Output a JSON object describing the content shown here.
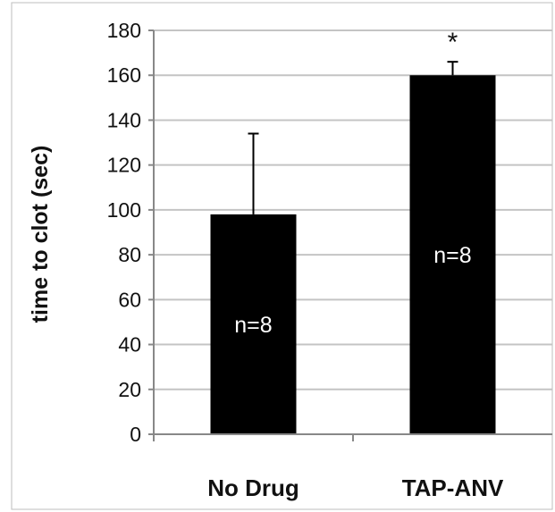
{
  "chart_data": {
    "type": "bar",
    "title": "",
    "xlabel": "",
    "ylabel": "time to clot (sec)",
    "categories": [
      "No Drug",
      "TAP-ANV"
    ],
    "values": [
      98,
      160
    ],
    "error_upper": [
      134,
      166
    ],
    "bar_labels": [
      "n=8",
      "n=8"
    ],
    "annotations": [
      "",
      "*"
    ],
    "ylim": [
      0,
      180
    ],
    "yticks": [
      "0",
      "20",
      "40",
      "60",
      "80",
      "100",
      "120",
      "140",
      "160",
      "180"
    ],
    "grid": true,
    "legend": "none",
    "colors": {
      "bar": "#000000",
      "grid": "#c4c4c4",
      "axis": "#888888",
      "frame": "#bdbdbd"
    }
  }
}
